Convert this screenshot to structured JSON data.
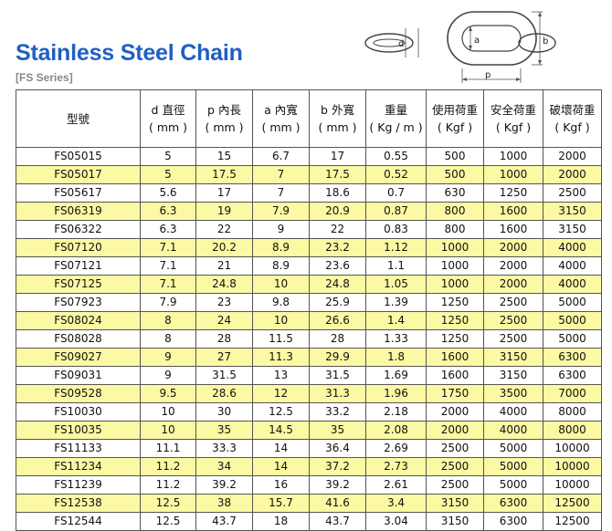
{
  "title": "Stainless Steel Chain",
  "series": "[FS Series]",
  "diagram": {
    "d": "d",
    "a": "a",
    "b": "b",
    "p": "p"
  },
  "columns": [
    {
      "l1": "型號",
      "l2": ""
    },
    {
      "l1": "d 直徑",
      "l2": "( mm )"
    },
    {
      "l1": "p 內長",
      "l2": "( mm )"
    },
    {
      "l1": "a 內寬",
      "l2": "( mm )"
    },
    {
      "l1": "b 外寬",
      "l2": "( mm )"
    },
    {
      "l1": "重量",
      "l2": "( Kg / m )"
    },
    {
      "l1": "使用荷重",
      "l2": "( Kgf )"
    },
    {
      "l1": "安全荷重",
      "l2": "( Kgf )"
    },
    {
      "l1": "破壞荷重",
      "l2": "( Kgf )"
    }
  ],
  "rows": [
    [
      "FS05015",
      "5",
      "15",
      "6.7",
      "17",
      "0.55",
      "500",
      "1000",
      "2000"
    ],
    [
      "FS05017",
      "5",
      "17.5",
      "7",
      "17.5",
      "0.52",
      "500",
      "1000",
      "2000"
    ],
    [
      "FS05617",
      "5.6",
      "17",
      "7",
      "18.6",
      "0.7",
      "630",
      "1250",
      "2500"
    ],
    [
      "FS06319",
      "6.3",
      "19",
      "7.9",
      "20.9",
      "0.87",
      "800",
      "1600",
      "3150"
    ],
    [
      "FS06322",
      "6.3",
      "22",
      "9",
      "22",
      "0.83",
      "800",
      "1600",
      "3150"
    ],
    [
      "FS07120",
      "7.1",
      "20.2",
      "8.9",
      "23.2",
      "1.12",
      "1000",
      "2000",
      "4000"
    ],
    [
      "FS07121",
      "7.1",
      "21",
      "8.9",
      "23.6",
      "1.1",
      "1000",
      "2000",
      "4000"
    ],
    [
      "FS07125",
      "7.1",
      "24.8",
      "10",
      "24.8",
      "1.05",
      "1000",
      "2000",
      "4000"
    ],
    [
      "FS07923",
      "7.9",
      "23",
      "9.8",
      "25.9",
      "1.39",
      "1250",
      "2500",
      "5000"
    ],
    [
      "FS08024",
      "8",
      "24",
      "10",
      "26.6",
      "1.4",
      "1250",
      "2500",
      "5000"
    ],
    [
      "FS08028",
      "8",
      "28",
      "11.5",
      "28",
      "1.33",
      "1250",
      "2500",
      "5000"
    ],
    [
      "FS09027",
      "9",
      "27",
      "11.3",
      "29.9",
      "1.8",
      "1600",
      "3150",
      "6300"
    ],
    [
      "FS09031",
      "9",
      "31.5",
      "13",
      "31.5",
      "1.69",
      "1600",
      "3150",
      "6300"
    ],
    [
      "FS09528",
      "9.5",
      "28.6",
      "12",
      "31.3",
      "1.96",
      "1750",
      "3500",
      "7000"
    ],
    [
      "FS10030",
      "10",
      "30",
      "12.5",
      "33.2",
      "2.18",
      "2000",
      "4000",
      "8000"
    ],
    [
      "FS10035",
      "10",
      "35",
      "14.5",
      "35",
      "2.08",
      "2000",
      "4000",
      "8000"
    ],
    [
      "FS11133",
      "11.1",
      "33.3",
      "14",
      "36.4",
      "2.69",
      "2500",
      "5000",
      "10000"
    ],
    [
      "FS11234",
      "11.2",
      "34",
      "14",
      "37.2",
      "2.73",
      "2500",
      "5000",
      "10000"
    ],
    [
      "FS11239",
      "11.2",
      "39.2",
      "16",
      "39.2",
      "2.61",
      "2500",
      "5000",
      "10000"
    ],
    [
      "FS12538",
      "12.5",
      "38",
      "15.7",
      "41.6",
      "3.4",
      "3150",
      "6300",
      "12500"
    ],
    [
      "FS12544",
      "12.5",
      "43.7",
      "18",
      "43.7",
      "3.04",
      "3150",
      "6300",
      "12500"
    ]
  ],
  "highlight_color": "#fbf9a3",
  "title_color": "#1f5fc4"
}
